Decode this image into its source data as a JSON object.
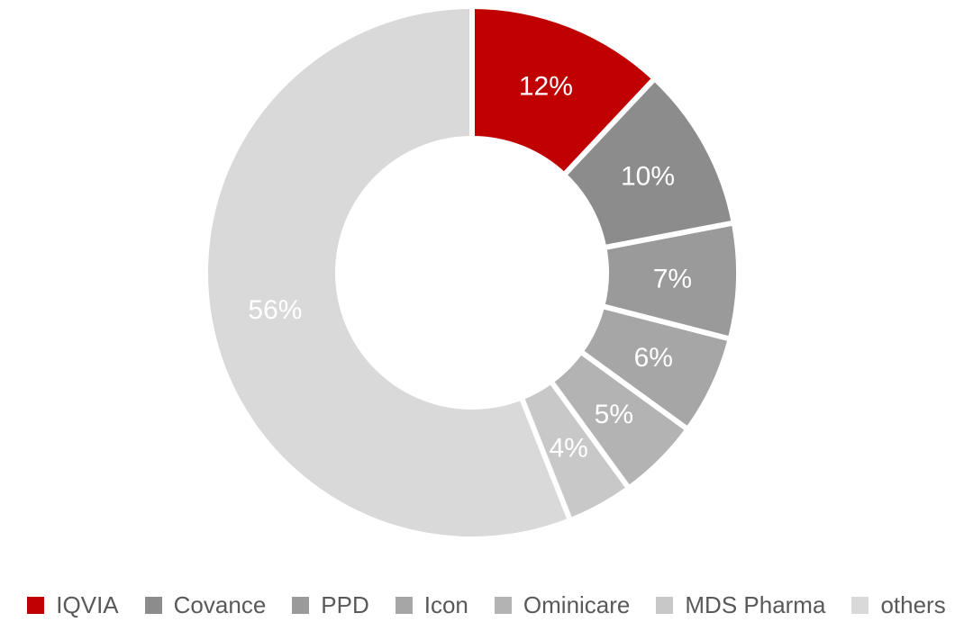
{
  "page": {
    "background": "#ffffff"
  },
  "chart_data": {
    "type": "pie",
    "subtype": "donut",
    "title": "",
    "categories": [
      "IQVIA",
      "Covance",
      "PPD",
      "Icon",
      "Ominicare",
      "MDS Pharma",
      "others"
    ],
    "values": [
      12,
      10,
      7,
      6,
      5,
      4,
      56
    ],
    "slice_labels": [
      "12%",
      "10%",
      "7%",
      "6%",
      "5%",
      "4%",
      "56%"
    ],
    "colors": [
      "#c00000",
      "#8c8c8c",
      "#9a9a9a",
      "#a6a6a6",
      "#b3b3b3",
      "#c8c8c8",
      "#d9d9d9"
    ],
    "start_angle_deg": 0,
    "direction": "clockwise",
    "inner_radius_ratio": 0.52,
    "slice_label_color": "#ffffff",
    "separator_color": "#ffffff",
    "legend": {
      "position": "bottom",
      "entries": [
        "IQVIA",
        "Covance",
        "PPD",
        "Icon",
        "Ominicare",
        "MDS Pharma",
        "others"
      ],
      "text_color": "#595959"
    }
  }
}
